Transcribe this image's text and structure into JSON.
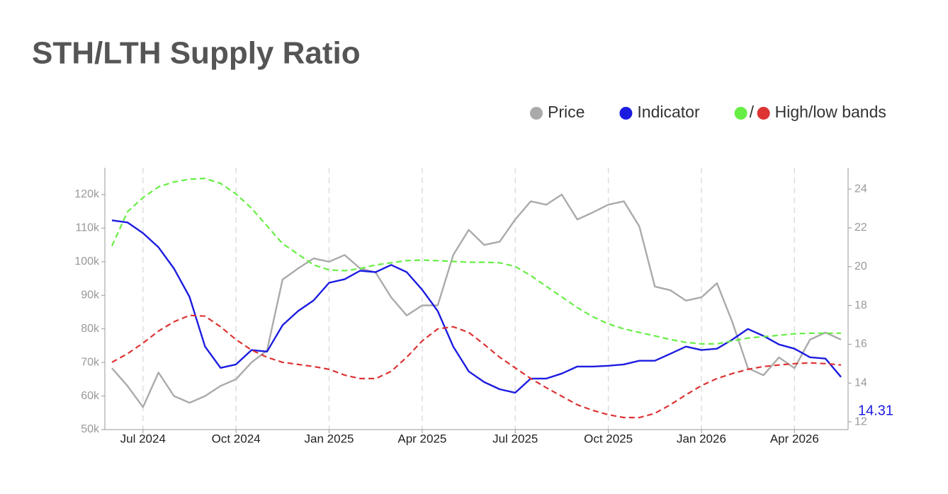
{
  "chart_data": {
    "type": "line",
    "title": "STH/LTH Supply Ratio",
    "categories": [
      null,
      null,
      "Jul 2024",
      null,
      null,
      null,
      null,
      null,
      "Oct 2024",
      null,
      null,
      null,
      null,
      null,
      "Jan 2025",
      null,
      null,
      null,
      null,
      null,
      "Apr 2025",
      null,
      null,
      null,
      null,
      null,
      "Jul 2025",
      null,
      null,
      null,
      null,
      null,
      "Oct 2025",
      null,
      null,
      null,
      null,
      null,
      "Jan 2026",
      null,
      null,
      null,
      null,
      null,
      "Apr 2026",
      null,
      null,
      null
    ],
    "series": [
      {
        "name": "Price",
        "color": "#aaaaaa",
        "axis": "y",
        "values": [
          68300,
          63000,
          56700,
          67000,
          60000,
          58000,
          60000,
          63000,
          65000,
          70000,
          73600,
          94700,
          98000,
          101000,
          100000,
          102000,
          98000,
          96800,
          89400,
          84000,
          87000,
          87000,
          102000,
          109500,
          105000,
          106000,
          112600,
          118000,
          117000,
          120000,
          112600,
          114700,
          117000,
          118000,
          110500,
          92600,
          91500,
          88400,
          89400,
          93600,
          82000,
          68300,
          66200,
          71500,
          68300,
          76800,
          78900,
          76800
        ]
      },
      {
        "name": "Indicator",
        "color": "#1c1ce0",
        "axis": "y2",
        "values": [
          22.39,
          22.28,
          21.73,
          21.0,
          19.9,
          18.44,
          15.88,
          14.78,
          14.96,
          15.7,
          15.62,
          16.98,
          17.71,
          18.26,
          19.17,
          19.35,
          19.79,
          19.72,
          20.09,
          19.72,
          18.81,
          17.71,
          15.88,
          14.6,
          14.05,
          13.68,
          13.5,
          14.23,
          14.23,
          14.49,
          14.85,
          14.85,
          14.89,
          14.96,
          15.15,
          15.15,
          15.51,
          15.88,
          15.7,
          15.77,
          16.24,
          16.79,
          16.43,
          15.99,
          15.77,
          15.33,
          15.26,
          14.31
        ]
      },
      {
        "name": "High/low bands",
        "color": "#66ee44",
        "axis": "y2",
        "dashed": true,
        "values": [
          21.07,
          22.83,
          23.56,
          24.11,
          24.37,
          24.51,
          24.55,
          24.29,
          23.75,
          23.01,
          22.1,
          21.19,
          20.64,
          20.09,
          19.83,
          19.79,
          19.9,
          20.09,
          20.2,
          20.31,
          20.34,
          20.31,
          20.27,
          20.23,
          20.23,
          20.2,
          20.01,
          19.54,
          18.99,
          18.44,
          17.89,
          17.42,
          17.05,
          16.79,
          16.61,
          16.43,
          16.24,
          16.1,
          16.02,
          16.02,
          16.17,
          16.32,
          16.39,
          16.46,
          16.54,
          16.57,
          16.57,
          16.57
        ]
      },
      {
        "color": "#dd3333",
        "axis": "y2",
        "dashed": true,
        "values": [
          15.07,
          15.51,
          16.06,
          16.68,
          17.16,
          17.49,
          17.45,
          16.9,
          16.24,
          15.7,
          15.33,
          15.07,
          14.96,
          14.85,
          14.71,
          14.41,
          14.23,
          14.23,
          14.6,
          15.33,
          16.17,
          16.79,
          16.9,
          16.61,
          15.99,
          15.33,
          14.78,
          14.23,
          13.76,
          13.32,
          12.88,
          12.59,
          12.37,
          12.22,
          12.22,
          12.44,
          12.88,
          13.39,
          13.87,
          14.23,
          14.49,
          14.71,
          14.85,
          14.93,
          15.0,
          15.04,
          15.0,
          14.93
        ]
      }
    ],
    "legend_separator": "/",
    "ylim": [
      50000,
      128000
    ],
    "yticks": [
      {
        "value": 50000,
        "label": "50k"
      },
      {
        "value": 60000,
        "label": "60k"
      },
      {
        "value": 70000,
        "label": "70k"
      },
      {
        "value": 80000,
        "label": "80k"
      },
      {
        "value": 90000,
        "label": "90k"
      },
      {
        "value": 100000,
        "label": "100k"
      },
      {
        "value": 110000,
        "label": "110k"
      },
      {
        "value": 120000,
        "label": "120k"
      }
    ],
    "y2lim": [
      11.6,
      25.1
    ],
    "y2ticks": [
      12,
      14,
      16,
      18,
      20,
      22,
      24
    ],
    "x_grid": true
  }
}
